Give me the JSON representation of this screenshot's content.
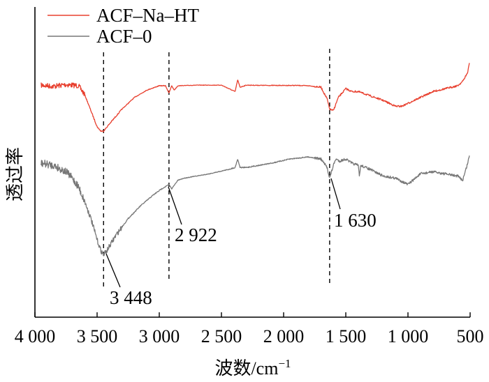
{
  "chart_data": {
    "type": "line",
    "title": "",
    "xlabel": "波数/cm",
    "xlabel_superscript": "−1",
    "ylabel": "透过率",
    "xlim": [
      4000,
      500
    ],
    "x_reversed": true,
    "x_ticks": [
      4000,
      3500,
      3000,
      2500,
      2000,
      1500,
      1000,
      500
    ],
    "x_tick_labels": [
      "4 000",
      "3 500",
      "3 000",
      "2 500",
      "2 000",
      "1 500",
      "1 000",
      "500"
    ],
    "y_ticks": false,
    "grid": false,
    "legend_position": "top-left",
    "series": [
      {
        "name": "ACF–Na–HT",
        "color": "#e8402f",
        "x": [
          3950,
          3850,
          3750,
          3650,
          3600,
          3550,
          3500,
          3470,
          3448,
          3400,
          3300,
          3200,
          3100,
          3000,
          2950,
          2922,
          2900,
          2880,
          2850,
          2700,
          2500,
          2390,
          2370,
          2350,
          2300,
          2100,
          1900,
          1800,
          1700,
          1650,
          1630,
          1600,
          1560,
          1500,
          1450,
          1400,
          1300,
          1200,
          1100,
          1050,
          1000,
          900,
          800,
          700,
          600,
          560,
          520,
          505
        ],
        "y": [
          -0.02,
          0.02,
          -0.04,
          0.0,
          0.3,
          0.85,
          1.4,
          1.55,
          1.55,
          1.3,
          0.8,
          0.4,
          0.15,
          0.0,
          0.0,
          0.25,
          0.0,
          0.15,
          0.0,
          -0.02,
          -0.02,
          0.2,
          -0.2,
          0.05,
          -0.02,
          -0.01,
          -0.01,
          0.0,
          0.05,
          0.45,
          0.8,
          0.85,
          0.4,
          0.1,
          0.2,
          0.2,
          0.35,
          0.5,
          0.7,
          0.7,
          0.6,
          0.4,
          0.2,
          0.1,
          0.0,
          -0.15,
          -0.45,
          -0.8
        ]
      },
      {
        "name": "ACF–0",
        "color": "#777777",
        "x": [
          3950,
          3850,
          3750,
          3700,
          3650,
          3600,
          3550,
          3500,
          3470,
          3448,
          3420,
          3350,
          3250,
          3150,
          3050,
          2980,
          2922,
          2900,
          2880,
          2850,
          2800,
          2600,
          2450,
          2390,
          2370,
          2350,
          2300,
          2100,
          1950,
          1800,
          1700,
          1650,
          1630,
          1600,
          1580,
          1550,
          1500,
          1450,
          1400,
          1390,
          1380,
          1300,
          1200,
          1100,
          1000,
          900,
          800,
          700,
          600,
          560,
          540,
          520,
          505
        ],
        "y": [
          1.2,
          1.25,
          1.4,
          1.55,
          1.75,
          2.1,
          2.5,
          3.0,
          3.25,
          3.35,
          3.25,
          2.9,
          2.5,
          2.2,
          1.95,
          1.8,
          1.7,
          1.8,
          1.72,
          1.6,
          1.55,
          1.45,
          1.35,
          1.3,
          1.1,
          1.3,
          1.3,
          1.2,
          1.1,
          1.05,
          1.1,
          1.3,
          1.55,
          1.25,
          1.1,
          1.15,
          1.1,
          1.2,
          1.25,
          1.5,
          1.25,
          1.35,
          1.5,
          1.55,
          1.7,
          1.45,
          1.4,
          1.45,
          1.5,
          1.6,
          1.4,
          1.2,
          1.0
        ]
      }
    ],
    "reference_lines": [
      {
        "x": 3448,
        "label": "3 448"
      },
      {
        "x": 2922,
        "label": "2 922"
      },
      {
        "x": 1630,
        "label": "1 630"
      }
    ]
  }
}
